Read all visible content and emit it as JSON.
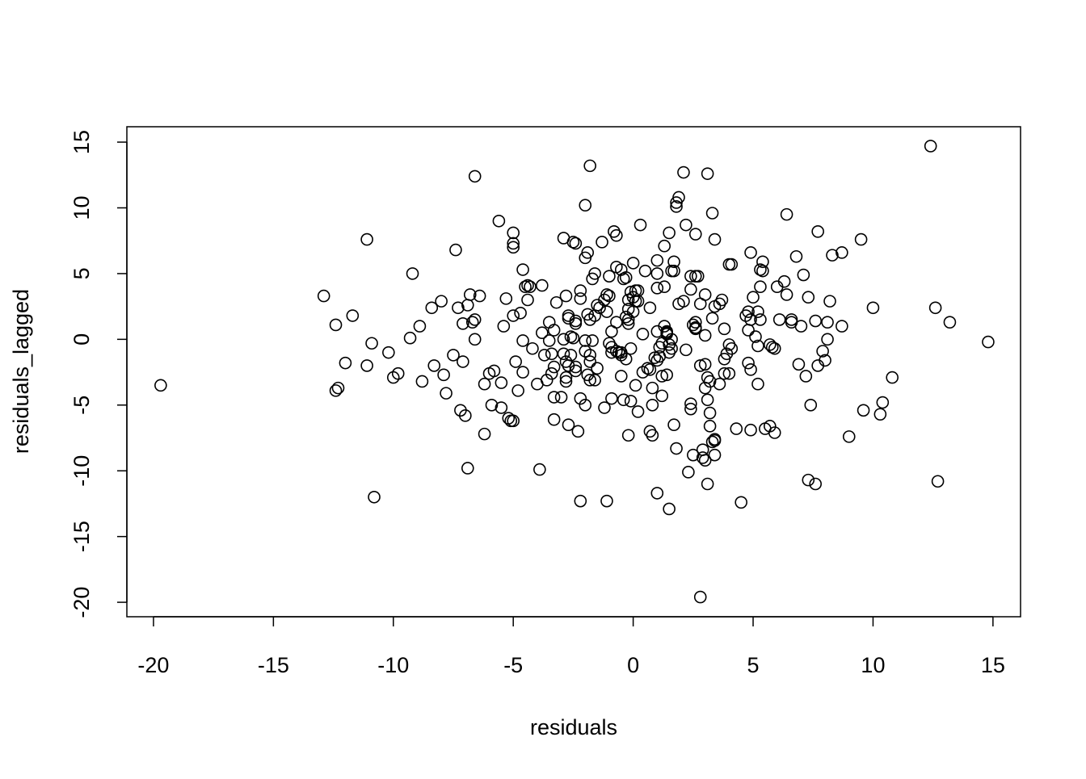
{
  "chart_data": {
    "type": "scatter",
    "x_label": "residuals",
    "y_label": "residuals_lagged",
    "xlim": [
      -21.11,
      16.15
    ],
    "ylim": [
      -21.1,
      16.17
    ],
    "xticks": [
      -20,
      -15,
      -10,
      -5,
      0,
      5,
      10,
      15
    ],
    "yticks": [
      -20,
      -15,
      -10,
      -5,
      0,
      5,
      10,
      15
    ],
    "color": "#000000",
    "points": [
      [
        -19.7,
        -3.5
      ],
      [
        -12.9,
        3.3
      ],
      [
        -12.4,
        1.1
      ],
      [
        -12.4,
        -3.9
      ],
      [
        -12.3,
        -3.7
      ],
      [
        -12.0,
        -1.8
      ],
      [
        -11.7,
        1.8
      ],
      [
        -11.1,
        7.6
      ],
      [
        -11.1,
        -2.0
      ],
      [
        -10.9,
        -0.3
      ],
      [
        -10.8,
        -12.0
      ],
      [
        -10.2,
        -1.0
      ],
      [
        -10.0,
        -2.9
      ],
      [
        -9.8,
        -2.6
      ],
      [
        -9.3,
        0.1
      ],
      [
        -9.2,
        5.0
      ],
      [
        -8.9,
        1.0
      ],
      [
        -8.8,
        -3.2
      ],
      [
        -8.4,
        2.4
      ],
      [
        -8.3,
        -2.0
      ],
      [
        -8.0,
        2.9
      ],
      [
        -7.9,
        -2.7
      ],
      [
        -7.8,
        -4.1
      ],
      [
        -7.4,
        6.8
      ],
      [
        -7.5,
        -1.2
      ],
      [
        -7.3,
        2.4
      ],
      [
        -7.2,
        -5.4
      ],
      [
        -7.0,
        -5.8
      ],
      [
        -7.1,
        -1.7
      ],
      [
        -7.1,
        1.2
      ],
      [
        -6.9,
        2.6
      ],
      [
        -6.9,
        -9.8
      ],
      [
        -6.8,
        3.4
      ],
      [
        -6.6,
        12.4
      ],
      [
        -6.7,
        1.3
      ],
      [
        -6.6,
        1.5
      ],
      [
        -6.6,
        0.0
      ],
      [
        -6.4,
        3.3
      ],
      [
        -6.2,
        -7.2
      ],
      [
        -6.2,
        -3.4
      ],
      [
        -6.0,
        -2.6
      ],
      [
        -5.9,
        -5.0
      ],
      [
        -5.8,
        -2.4
      ],
      [
        -5.6,
        9.0
      ],
      [
        -5.5,
        -5.2
      ],
      [
        -5.5,
        -3.3
      ],
      [
        -5.4,
        1.0
      ],
      [
        -5.3,
        3.1
      ],
      [
        -5.2,
        -6.0
      ],
      [
        -5.1,
        -6.2
      ],
      [
        -5.0,
        1.8
      ],
      [
        -5.0,
        8.1
      ],
      [
        -5.0,
        7.3
      ],
      [
        -5.0,
        7.0
      ],
      [
        -5.0,
        -6.2
      ],
      [
        -4.9,
        -1.7
      ],
      [
        -4.8,
        -3.9
      ],
      [
        -4.7,
        2.0
      ],
      [
        -4.6,
        5.3
      ],
      [
        -4.6,
        -0.1
      ],
      [
        -4.6,
        -2.5
      ],
      [
        -4.5,
        4.0
      ],
      [
        -4.4,
        4.1
      ],
      [
        -4.3,
        4.0
      ],
      [
        -4.4,
        3.0
      ],
      [
        -4.2,
        -0.7
      ],
      [
        -4.0,
        -3.4
      ],
      [
        -3.9,
        -9.9
      ],
      [
        -3.8,
        4.1
      ],
      [
        -3.8,
        0.5
      ],
      [
        -3.7,
        -1.2
      ],
      [
        -3.6,
        -3.1
      ],
      [
        -3.5,
        -0.1
      ],
      [
        -3.4,
        -1.1
      ],
      [
        -3.5,
        1.3
      ],
      [
        -3.3,
        -2.1
      ],
      [
        -3.4,
        -2.6
      ],
      [
        -3.3,
        -4.4
      ],
      [
        -3.3,
        0.7
      ],
      [
        -3.3,
        -6.1
      ],
      [
        -3.2,
        2.8
      ],
      [
        -3.0,
        -4.4
      ],
      [
        -2.9,
        7.7
      ],
      [
        -2.9,
        0.0
      ],
      [
        -2.9,
        -1.1
      ],
      [
        -2.8,
        -2.9
      ],
      [
        -2.8,
        -3.2
      ],
      [
        -2.8,
        -1.7
      ],
      [
        -2.8,
        3.3
      ],
      [
        -2.7,
        1.8
      ],
      [
        -2.7,
        1.6
      ],
      [
        -2.6,
        0.2
      ],
      [
        -2.5,
        0.1
      ],
      [
        -2.7,
        -6.5
      ],
      [
        -2.7,
        -2.0
      ],
      [
        -2.6,
        -1.2
      ],
      [
        -2.5,
        7.4
      ],
      [
        -2.4,
        7.3
      ],
      [
        -2.4,
        1.4
      ],
      [
        -2.4,
        1.2
      ],
      [
        -2.4,
        -2.1
      ],
      [
        -2.4,
        -2.4
      ],
      [
        -2.3,
        -7.0
      ],
      [
        -2.2,
        -12.3
      ],
      [
        -2.2,
        3.7
      ],
      [
        -2.2,
        3.1
      ],
      [
        -2.2,
        -4.5
      ],
      [
        -2.0,
        -5.0
      ],
      [
        -2.0,
        10.2
      ],
      [
        -2.0,
        6.2
      ],
      [
        -1.9,
        6.6
      ],
      [
        -2.0,
        -0.1
      ],
      [
        -2.0,
        -0.9
      ],
      [
        -1.9,
        1.9
      ],
      [
        -1.8,
        1.5
      ],
      [
        -1.9,
        -2.7
      ],
      [
        -1.8,
        -3.1
      ],
      [
        -1.6,
        -3.1
      ],
      [
        -1.8,
        13.2
      ],
      [
        -1.8,
        -1.7
      ],
      [
        -1.8,
        -1.2
      ],
      [
        -1.7,
        -0.1
      ],
      [
        -1.7,
        4.6
      ],
      [
        -1.6,
        5.0
      ],
      [
        -1.5,
        -2.2
      ],
      [
        -1.5,
        2.6
      ],
      [
        -1.4,
        2.4
      ],
      [
        -1.6,
        1.8
      ],
      [
        -1.3,
        7.4
      ],
      [
        -1.2,
        3.0
      ],
      [
        -1.1,
        3.4
      ],
      [
        -1.0,
        3.3
      ],
      [
        -1.2,
        -5.2
      ],
      [
        -1.1,
        -12.3
      ],
      [
        -1.1,
        2.1
      ],
      [
        -1.0,
        4.8
      ],
      [
        -1.0,
        -0.3
      ],
      [
        -0.9,
        -1.0
      ],
      [
        -0.9,
        -0.6
      ],
      [
        -0.9,
        -4.5
      ],
      [
        -0.9,
        0.6
      ],
      [
        -0.8,
        8.2
      ],
      [
        -0.7,
        7.9
      ],
      [
        -0.7,
        1.3
      ],
      [
        -0.7,
        5.5
      ],
      [
        -0.5,
        5.3
      ],
      [
        -0.6,
        -1.0
      ],
      [
        -0.5,
        -1.2
      ],
      [
        -0.7,
        -0.9
      ],
      [
        -0.5,
        -1.0
      ],
      [
        -0.5,
        -2.8
      ],
      [
        -0.4,
        -4.6
      ],
      [
        -0.4,
        4.6
      ],
      [
        -0.3,
        4.7
      ],
      [
        -0.3,
        -1.5
      ],
      [
        -0.3,
        1.7
      ],
      [
        -0.2,
        2.3
      ],
      [
        -0.2,
        3.0
      ],
      [
        -0.2,
        1.5
      ],
      [
        -0.2,
        1.2
      ],
      [
        -0.1,
        3.6
      ],
      [
        -0.1,
        -0.7
      ],
      [
        -0.2,
        -7.3
      ],
      [
        0.0,
        5.8
      ],
      [
        -0.1,
        -4.7
      ],
      [
        0.0,
        3.2
      ],
      [
        0.1,
        2.9
      ],
      [
        0.2,
        2.9
      ],
      [
        0.1,
        3.7
      ],
      [
        0.2,
        3.7
      ],
      [
        0.0,
        2.1
      ],
      [
        0.1,
        -3.5
      ],
      [
        0.2,
        -5.5
      ],
      [
        0.3,
        8.7
      ],
      [
        0.4,
        0.4
      ],
      [
        0.4,
        -2.5
      ],
      [
        0.6,
        -2.2
      ],
      [
        0.5,
        5.2
      ],
      [
        0.7,
        2.4
      ],
      [
        0.7,
        -2.3
      ],
      [
        0.7,
        -7.0
      ],
      [
        0.8,
        -7.3
      ],
      [
        0.8,
        -5.0
      ],
      [
        0.8,
        -3.7
      ],
      [
        1.0,
        6.0
      ],
      [
        1.0,
        3.9
      ],
      [
        0.9,
        -1.4
      ],
      [
        1.0,
        -1.6
      ],
      [
        1.0,
        0.6
      ],
      [
        1.0,
        -11.7
      ],
      [
        1.1,
        -1.3
      ],
      [
        1.1,
        -0.6
      ],
      [
        1.2,
        -0.3
      ],
      [
        1.2,
        -2.8
      ],
      [
        1.3,
        4.0
      ],
      [
        1.0,
        5.0
      ],
      [
        1.3,
        7.1
      ],
      [
        1.2,
        -4.3
      ],
      [
        1.4,
        0.4
      ],
      [
        1.4,
        0.6
      ],
      [
        1.3,
        1.0
      ],
      [
        1.4,
        0.5
      ],
      [
        1.4,
        -2.7
      ],
      [
        1.5,
        -0.4
      ],
      [
        1.6,
        -0.7
      ],
      [
        1.5,
        -1.0
      ],
      [
        1.5,
        -12.9
      ],
      [
        1.5,
        8.1
      ],
      [
        1.6,
        5.2
      ],
      [
        1.7,
        5.2
      ],
      [
        1.7,
        5.9
      ],
      [
        1.7,
        -6.5
      ],
      [
        1.8,
        -8.3
      ],
      [
        1.8,
        10.1
      ],
      [
        1.9,
        10.8
      ],
      [
        1.8,
        10.4
      ],
      [
        1.6,
        0.0
      ],
      [
        1.9,
        2.7
      ],
      [
        2.1,
        2.9
      ],
      [
        2.1,
        12.7
      ],
      [
        2.2,
        -0.8
      ],
      [
        2.2,
        8.7
      ],
      [
        2.3,
        -10.1
      ],
      [
        2.4,
        4.8
      ],
      [
        2.6,
        4.8
      ],
      [
        2.4,
        -4.9
      ],
      [
        2.4,
        -5.3
      ],
      [
        2.4,
        3.8
      ],
      [
        2.5,
        1.1
      ],
      [
        2.6,
        1.3
      ],
      [
        2.6,
        0.9
      ],
      [
        2.6,
        0.8
      ],
      [
        2.5,
        -8.8
      ],
      [
        2.6,
        8.0
      ],
      [
        2.7,
        4.8
      ],
      [
        2.8,
        -19.6
      ],
      [
        2.8,
        -2.0
      ],
      [
        2.8,
        2.7
      ],
      [
        2.9,
        -8.4
      ],
      [
        2.9,
        -9.0
      ],
      [
        3.0,
        -9.2
      ],
      [
        3.0,
        -3.7
      ],
      [
        3.0,
        0.3
      ],
      [
        3.0,
        3.4
      ],
      [
        3.0,
        -1.9
      ],
      [
        3.1,
        -11.0
      ],
      [
        3.1,
        12.6
      ],
      [
        3.1,
        -4.6
      ],
      [
        3.1,
        -2.9
      ],
      [
        3.2,
        -3.2
      ],
      [
        3.2,
        -5.6
      ],
      [
        3.2,
        -6.6
      ],
      [
        3.3,
        1.6
      ],
      [
        3.3,
        9.6
      ],
      [
        3.4,
        7.6
      ],
      [
        3.3,
        -7.8
      ],
      [
        3.4,
        -7.6
      ],
      [
        3.4,
        -7.7
      ],
      [
        3.4,
        -8.8
      ],
      [
        3.4,
        2.5
      ],
      [
        3.6,
        2.7
      ],
      [
        3.7,
        3.0
      ],
      [
        3.6,
        -3.4
      ],
      [
        3.8,
        -1.5
      ],
      [
        3.8,
        -2.6
      ],
      [
        3.8,
        0.8
      ],
      [
        3.9,
        -1.1
      ],
      [
        4.0,
        -0.4
      ],
      [
        4.1,
        -0.7
      ],
      [
        4.0,
        -2.6
      ],
      [
        4.0,
        5.7
      ],
      [
        4.1,
        5.7
      ],
      [
        4.3,
        -6.8
      ],
      [
        4.5,
        -12.4
      ],
      [
        4.8,
        0.7
      ],
      [
        4.7,
        1.8
      ],
      [
        4.8,
        2.1
      ],
      [
        4.8,
        -1.8
      ],
      [
        4.9,
        -6.9
      ],
      [
        4.9,
        6.6
      ],
      [
        4.9,
        -2.3
      ],
      [
        5.0,
        3.2
      ],
      [
        4.9,
        1.5
      ],
      [
        5.1,
        0.2
      ],
      [
        5.2,
        -3.4
      ],
      [
        5.2,
        2.1
      ],
      [
        5.3,
        1.5
      ],
      [
        5.2,
        -0.5
      ],
      [
        5.3,
        5.3
      ],
      [
        5.4,
        5.9
      ],
      [
        5.4,
        5.2
      ],
      [
        5.3,
        4.0
      ],
      [
        5.5,
        -6.8
      ],
      [
        5.7,
        -6.6
      ],
      [
        5.7,
        -0.4
      ],
      [
        5.8,
        -0.6
      ],
      [
        5.9,
        -7.1
      ],
      [
        5.9,
        -0.7
      ],
      [
        6.0,
        4.0
      ],
      [
        6.1,
        1.5
      ],
      [
        6.3,
        4.4
      ],
      [
        6.4,
        3.4
      ],
      [
        6.4,
        9.5
      ],
      [
        6.6,
        1.5
      ],
      [
        6.6,
        1.3
      ],
      [
        6.8,
        6.3
      ],
      [
        6.9,
        -1.9
      ],
      [
        7.0,
        1.0
      ],
      [
        7.1,
        4.9
      ],
      [
        7.2,
        -2.8
      ],
      [
        7.3,
        -10.7
      ],
      [
        7.3,
        3.2
      ],
      [
        7.4,
        -5.0
      ],
      [
        7.6,
        -11.0
      ],
      [
        7.6,
        1.4
      ],
      [
        7.7,
        -2.0
      ],
      [
        7.7,
        8.2
      ],
      [
        7.9,
        -0.9
      ],
      [
        8.0,
        -1.6
      ],
      [
        8.1,
        1.3
      ],
      [
        8.1,
        0.0
      ],
      [
        8.2,
        2.9
      ],
      [
        8.3,
        6.4
      ],
      [
        8.7,
        6.6
      ],
      [
        8.7,
        1.0
      ],
      [
        9.0,
        -7.4
      ],
      [
        9.5,
        7.6
      ],
      [
        9.6,
        -5.4
      ],
      [
        10.0,
        2.4
      ],
      [
        10.3,
        -5.7
      ],
      [
        10.4,
        -4.8
      ],
      [
        10.8,
        -2.9
      ],
      [
        12.4,
        14.7
      ],
      [
        12.6,
        2.4
      ],
      [
        12.7,
        -10.8
      ],
      [
        13.2,
        1.3
      ],
      [
        14.8,
        -0.2
      ]
    ]
  }
}
